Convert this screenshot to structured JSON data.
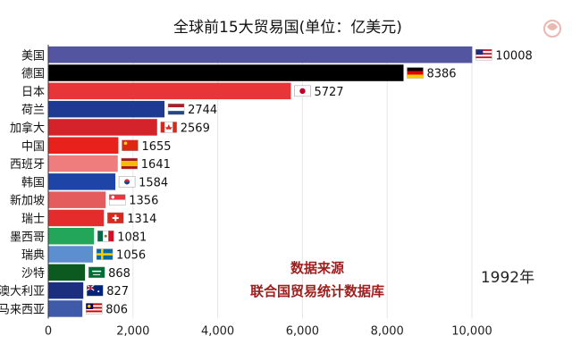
{
  "chart_data": {
    "type": "bar",
    "orientation": "horizontal",
    "title": "全球前15大贸易国(单位：亿美元)",
    "year": "1992年",
    "source_label": "数据来源",
    "source_name": "联合国贸易统计数据库",
    "xlim": [
      0,
      10000
    ],
    "xticks": [
      0,
      2000,
      4000,
      6000,
      8000,
      10000
    ],
    "xtick_labels": [
      "0",
      "2,000",
      "4,000",
      "6,000",
      "8,000",
      "10,000"
    ],
    "grid": true,
    "categories": [
      "美国",
      "德国",
      "日本",
      "荷兰",
      "加拿大",
      "中国",
      "西班牙",
      "韩国",
      "新加坡",
      "瑞士",
      "墨西哥",
      "瑞典",
      "沙特",
      "澳大利亚",
      "马来西亚"
    ],
    "values": [
      10008,
      8386,
      5727,
      2744,
      2569,
      1655,
      1641,
      1584,
      1356,
      1314,
      1081,
      1056,
      868,
      827,
      806
    ],
    "bar_colors": [
      "#5355a0",
      "#000000",
      "#e83537",
      "#1f3a93",
      "#d5232b",
      "#e8211d",
      "#ef7d7d",
      "#1f44a8",
      "#e55c5c",
      "#e52c2c",
      "#23a55a",
      "#5b8fd0",
      "#0c5a1f",
      "#1c2f7f",
      "#3f5aa8"
    ],
    "flag_icons": [
      "usa-flag-icon",
      "germany-flag-icon",
      "japan-flag-icon",
      "netherlands-flag-icon",
      "canada-flag-icon",
      "china-flag-icon",
      "spain-flag-icon",
      "korea-flag-icon",
      "singapore-flag-icon",
      "switzerland-flag-icon",
      "mexico-flag-icon",
      "sweden-flag-icon",
      "saudi-flag-icon",
      "australia-flag-icon",
      "malaysia-flag-icon"
    ],
    "colors": {
      "source_text": "#a01e1e",
      "grid": "#e6e6e6",
      "axis": "#333333"
    }
  }
}
